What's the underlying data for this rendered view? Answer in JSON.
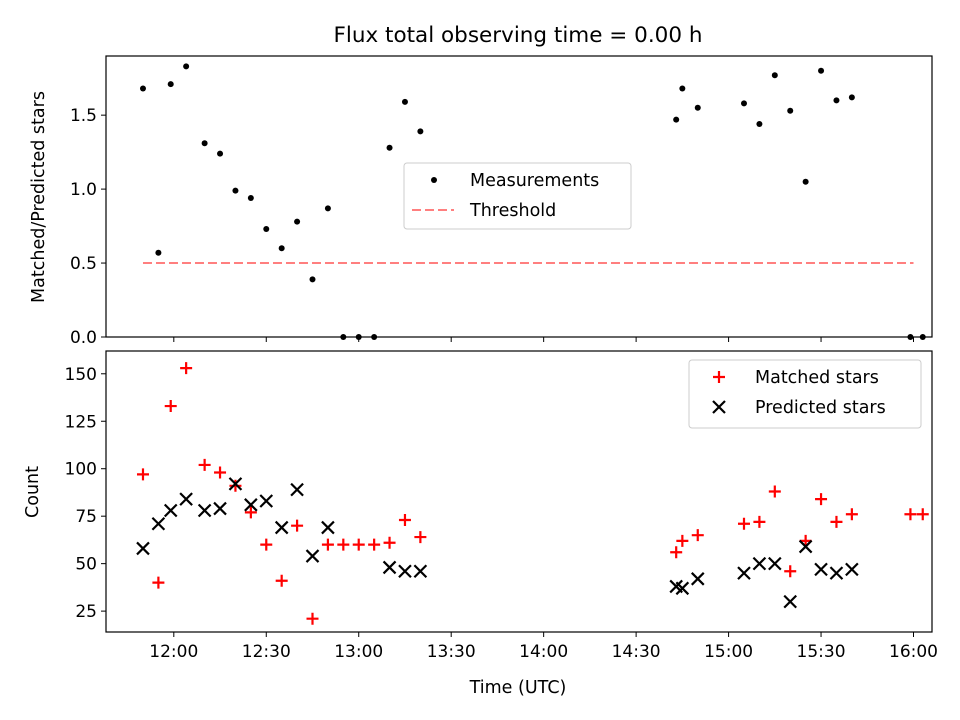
{
  "figure": {
    "title": "Flux total observing time = 0.00 h",
    "xlabel": "Time (UTC)"
  },
  "chart_data": [
    {
      "type": "scatter",
      "ylabel": "Matched/Predicted stars",
      "ylim": [
        0,
        1.9
      ],
      "yticks": [
        0.0,
        0.5,
        1.0,
        1.5
      ],
      "ytick_labels": [
        "0.0",
        "0.5",
        "1.0",
        "1.5"
      ],
      "xlim": [
        "11:38",
        "16:06"
      ],
      "legend": {
        "placement": "center",
        "entries": [
          "Measurements",
          "Threshold"
        ]
      },
      "series": [
        {
          "name": "Measurements",
          "marker": "dot",
          "color": "#000000",
          "points": [
            [
              "11:50",
              1.68
            ],
            [
              "11:55",
              0.57
            ],
            [
              "11:59",
              1.71
            ],
            [
              "12:04",
              1.83
            ],
            [
              "12:10",
              1.31
            ],
            [
              "12:15",
              1.24
            ],
            [
              "12:20",
              0.99
            ],
            [
              "12:25",
              0.94
            ],
            [
              "12:30",
              0.73
            ],
            [
              "12:35",
              0.6
            ],
            [
              "12:40",
              0.78
            ],
            [
              "12:45",
              0.39
            ],
            [
              "12:50",
              0.87
            ],
            [
              "12:55",
              0.0
            ],
            [
              "13:00",
              0.0
            ],
            [
              "13:05",
              0.0
            ],
            [
              "13:10",
              1.28
            ],
            [
              "13:15",
              1.59
            ],
            [
              "13:20",
              1.39
            ],
            [
              "14:43",
              1.47
            ],
            [
              "14:45",
              1.68
            ],
            [
              "14:50",
              1.55
            ],
            [
              "15:05",
              1.58
            ],
            [
              "15:10",
              1.44
            ],
            [
              "15:15",
              1.77
            ],
            [
              "15:20",
              1.53
            ],
            [
              "15:25",
              1.05
            ],
            [
              "15:30",
              1.8
            ],
            [
              "15:35",
              1.6
            ],
            [
              "15:40",
              1.62
            ],
            [
              "15:59",
              0.0
            ],
            [
              "16:03",
              0.0
            ]
          ]
        },
        {
          "name": "Threshold",
          "style": "dashed",
          "color": "#ff7f7f",
          "points": [
            [
              "11:50",
              0.5
            ],
            [
              "16:00",
              0.5
            ]
          ]
        }
      ]
    },
    {
      "type": "scatter",
      "ylabel": "Count",
      "ylim": [
        14,
        162
      ],
      "yticks": [
        25,
        50,
        75,
        100,
        125,
        150
      ],
      "ytick_labels": [
        "25",
        "50",
        "75",
        "100",
        "125",
        "150"
      ],
      "xlim": [
        "11:38",
        "16:06"
      ],
      "xticks": [
        "12:00",
        "12:30",
        "13:00",
        "13:30",
        "14:00",
        "14:30",
        "15:00",
        "15:30",
        "16:00"
      ],
      "xtick_labels": [
        "12:00",
        "12:30",
        "13:00",
        "13:30",
        "14:00",
        "14:30",
        "15:00",
        "15:30",
        "16:00"
      ],
      "legend": {
        "placement": "upper right",
        "entries": [
          "Matched stars",
          "Predicted stars"
        ]
      },
      "series": [
        {
          "name": "Matched stars",
          "marker": "plus",
          "color": "#ff0000",
          "points": [
            [
              "11:50",
              97
            ],
            [
              "11:55",
              40
            ],
            [
              "11:59",
              133
            ],
            [
              "12:04",
              153
            ],
            [
              "12:10",
              102
            ],
            [
              "12:15",
              98
            ],
            [
              "12:20",
              91
            ],
            [
              "12:25",
              77
            ],
            [
              "12:30",
              60
            ],
            [
              "12:35",
              41
            ],
            [
              "12:40",
              70
            ],
            [
              "12:45",
              21
            ],
            [
              "12:50",
              60
            ],
            [
              "12:55",
              60
            ],
            [
              "13:00",
              60
            ],
            [
              "13:05",
              60
            ],
            [
              "13:10",
              61
            ],
            [
              "13:15",
              73
            ],
            [
              "13:20",
              64
            ],
            [
              "14:43",
              56
            ],
            [
              "14:45",
              62
            ],
            [
              "14:50",
              65
            ],
            [
              "15:05",
              71
            ],
            [
              "15:10",
              72
            ],
            [
              "15:15",
              88
            ],
            [
              "15:20",
              46
            ],
            [
              "15:25",
              62
            ],
            [
              "15:30",
              84
            ],
            [
              "15:35",
              72
            ],
            [
              "15:40",
              76
            ],
            [
              "15:59",
              76
            ],
            [
              "16:03",
              76
            ]
          ]
        },
        {
          "name": "Predicted stars",
          "marker": "x",
          "color": "#000000",
          "points": [
            [
              "11:50",
              58
            ],
            [
              "11:55",
              71
            ],
            [
              "11:59",
              78
            ],
            [
              "12:04",
              84
            ],
            [
              "12:10",
              78
            ],
            [
              "12:15",
              79
            ],
            [
              "12:20",
              92
            ],
            [
              "12:25",
              81
            ],
            [
              "12:30",
              83
            ],
            [
              "12:35",
              69
            ],
            [
              "12:40",
              89
            ],
            [
              "12:45",
              54
            ],
            [
              "12:50",
              69
            ],
            [
              "13:10",
              48
            ],
            [
              "13:15",
              46
            ],
            [
              "13:20",
              46
            ],
            [
              "14:43",
              38
            ],
            [
              "14:45",
              37
            ],
            [
              "14:50",
              42
            ],
            [
              "15:05",
              45
            ],
            [
              "15:10",
              50
            ],
            [
              "15:15",
              50
            ],
            [
              "15:20",
              30
            ],
            [
              "15:25",
              59
            ],
            [
              "15:30",
              47
            ],
            [
              "15:35",
              45
            ],
            [
              "15:40",
              47
            ]
          ]
        }
      ]
    }
  ]
}
